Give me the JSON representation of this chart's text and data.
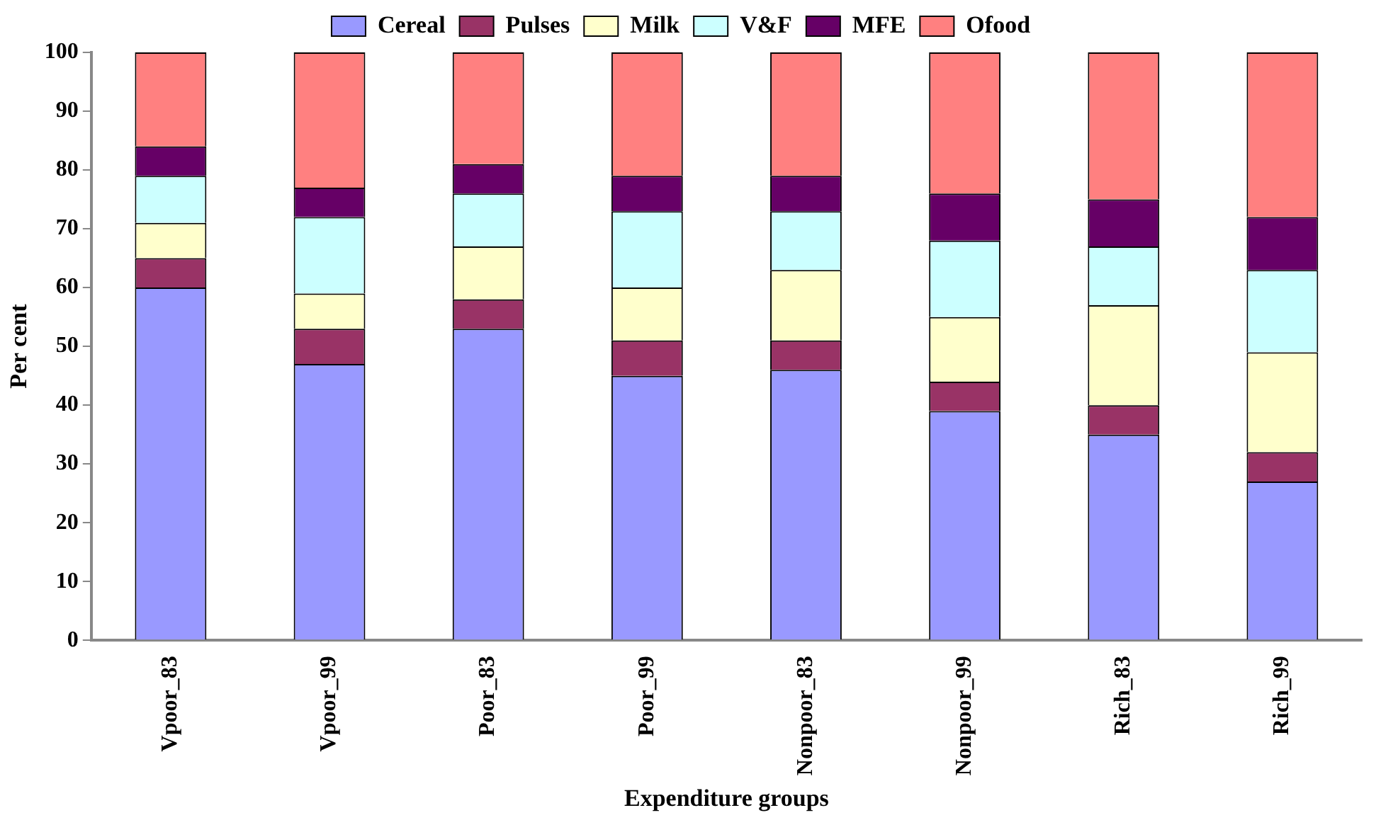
{
  "chart_data": {
    "type": "bar",
    "stacked": true,
    "xlabel": "Expenditure groups",
    "ylabel": "Per cent",
    "categories": [
      "Vpoor_83",
      "Vpoor_99",
      "Poor_83",
      "Poor_99",
      "Nonpoor_83",
      "Nonpoor_99",
      "Rich_83",
      "Rich_99"
    ],
    "series": [
      {
        "name": "Cereal",
        "color": "#9999ff",
        "values": [
          60,
          47,
          53,
          45,
          46,
          39,
          35,
          27
        ]
      },
      {
        "name": "Pulses",
        "color": "#993366",
        "values": [
          5,
          6,
          5,
          6,
          5,
          5,
          5,
          5
        ]
      },
      {
        "name": "Milk",
        "color": "#ffffcc",
        "values": [
          6,
          6,
          9,
          9,
          12,
          11,
          17,
          17
        ]
      },
      {
        "name": "V&F",
        "color": "#ccffff",
        "values": [
          8,
          13,
          9,
          13,
          10,
          13,
          10,
          14
        ]
      },
      {
        "name": "MFE",
        "color": "#660066",
        "values": [
          5,
          5,
          5,
          6,
          6,
          8,
          8,
          9
        ]
      },
      {
        "name": "Ofood",
        "color": "#ff8080",
        "values": [
          16,
          23,
          19,
          21,
          21,
          24,
          25,
          28
        ]
      }
    ],
    "ylim": [
      0,
      100
    ],
    "yticks": [
      0,
      10,
      20,
      30,
      40,
      50,
      60,
      70,
      80,
      90,
      100
    ],
    "grid": false,
    "legend": "top"
  }
}
